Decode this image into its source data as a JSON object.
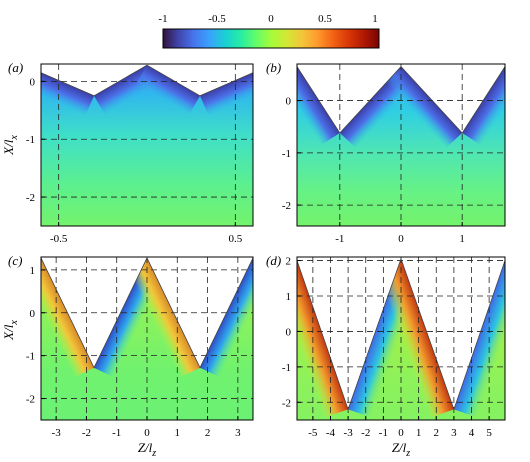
{
  "colorbar": {
    "ticks": [
      "-1",
      "-0.5",
      "0",
      "0.5",
      "1"
    ],
    "range": [
      -1,
      1
    ],
    "colormap": "turbo"
  },
  "chart_data": [
    {
      "type": "heatmap",
      "panel": "(a)",
      "xticks": [
        "-0.5",
        "0.5"
      ],
      "xtick_values": [
        -0.5,
        0.5
      ],
      "yticks": [
        "0",
        "-1",
        "-2"
      ],
      "ytick_values": [
        0,
        -1,
        -2
      ],
      "ylabel": "X/l_x",
      "xlabel": "",
      "xlim": [
        -0.6,
        0.6
      ],
      "ylim": [
        -2.5,
        0.3
      ],
      "grid": true,
      "boundary": [
        [
          -0.6,
          0.15
        ],
        [
          -0.3,
          -0.25
        ],
        [
          0,
          0.28
        ],
        [
          0.3,
          -0.25
        ],
        [
          0.6,
          0.15
        ]
      ]
    },
    {
      "type": "heatmap",
      "panel": "(b)",
      "xticks": [
        "-1",
        "0",
        "1"
      ],
      "xtick_values": [
        -1,
        0,
        1
      ],
      "yticks": [
        "0",
        "-1",
        "-2"
      ],
      "ytick_values": [
        0,
        -1,
        -2
      ],
      "ylabel": "",
      "xlabel": "",
      "xlim": [
        -1.7,
        1.7
      ],
      "ylim": [
        -2.4,
        0.7
      ],
      "grid": true,
      "boundary": [
        [
          -1.7,
          0.65
        ],
        [
          -1,
          -0.62
        ],
        [
          0,
          0.65
        ],
        [
          1,
          -0.62
        ],
        [
          1.7,
          0.65
        ]
      ]
    },
    {
      "type": "heatmap",
      "panel": "(c)",
      "xticks": [
        "-3",
        "-2",
        "-1",
        "0",
        "1",
        "2",
        "3"
      ],
      "xtick_values": [
        -3,
        -2,
        -1,
        0,
        1,
        2,
        3
      ],
      "yticks": [
        "1",
        "0",
        "-1",
        "-2"
      ],
      "ytick_values": [
        1,
        0,
        -1,
        -2
      ],
      "ylabel": "X/l_x",
      "xlabel": "Z/l_z",
      "xlim": [
        -3.5,
        3.5
      ],
      "ylim": [
        -2.5,
        1.3
      ],
      "grid": true,
      "boundary": [
        [
          -3.5,
          1.28
        ],
        [
          -1.75,
          -1.28
        ],
        [
          0,
          1.28
        ],
        [
          1.75,
          -1.28
        ],
        [
          3.5,
          1.28
        ]
      ]
    },
    {
      "type": "heatmap",
      "panel": "(d)",
      "xticks": [
        "-5",
        "-4",
        "-3",
        "-2",
        "-1",
        "0",
        "1",
        "2",
        "3",
        "4",
        "5"
      ],
      "xtick_values": [
        -5,
        -4,
        -3,
        -2,
        -1,
        0,
        1,
        2,
        3,
        4,
        5
      ],
      "yticks": [
        "2",
        "1",
        "0",
        "-1",
        "-2"
      ],
      "ytick_values": [
        2,
        1,
        0,
        -1,
        -2
      ],
      "ylabel": "",
      "xlabel": "Z/l_z",
      "xlim": [
        -5.9,
        5.9
      ],
      "ylim": [
        -2.5,
        2.1
      ],
      "grid": true,
      "boundary": [
        [
          -5.9,
          2.0
        ],
        [
          -3,
          -2.2
        ],
        [
          0,
          2.05
        ],
        [
          3,
          -2.2
        ],
        [
          5.9,
          2.0
        ]
      ]
    }
  ]
}
